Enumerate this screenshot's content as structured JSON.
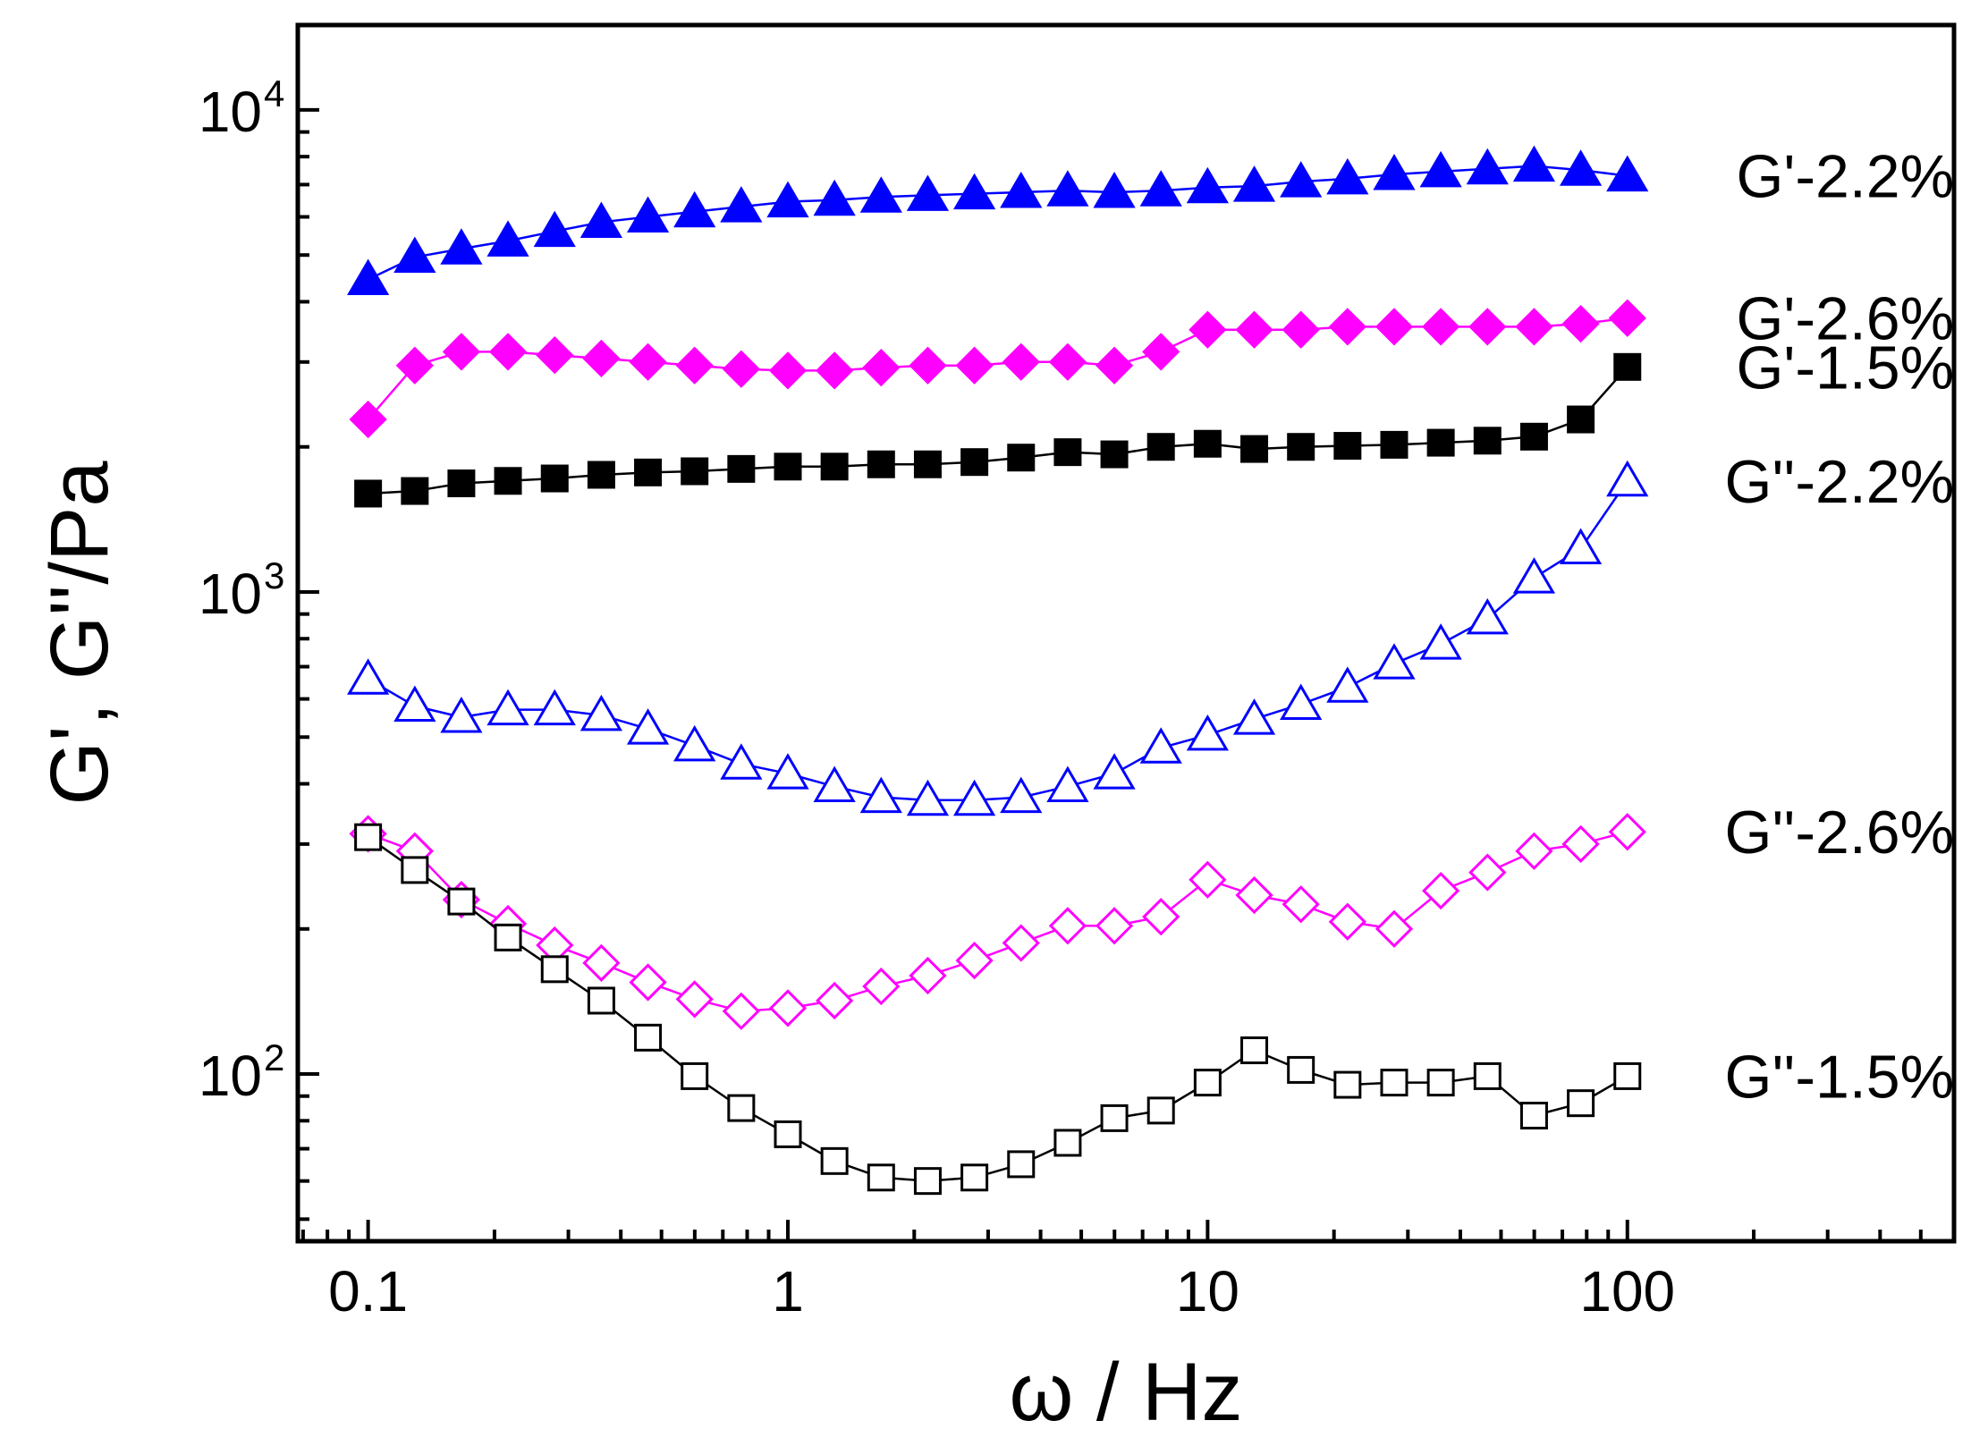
{
  "chart_data": {
    "type": "scatter",
    "xscale": "log",
    "yscale": "log",
    "xlim": [
      0.068,
      600
    ],
    "ylim": [
      45,
      15000
    ],
    "xlabel": "ω / Hz",
    "ylabel": "G', G''/Pa",
    "x_ticks": [
      {
        "value": 0.1,
        "label": "0.1"
      },
      {
        "value": 1,
        "label": "1"
      },
      {
        "value": 10,
        "label": "10"
      },
      {
        "value": 100,
        "label": "100"
      }
    ],
    "y_ticks": [
      {
        "value": 100,
        "base": "10",
        "exp": "2"
      },
      {
        "value": 1000,
        "base": "10",
        "exp": "3"
      },
      {
        "value": 10000,
        "base": "10",
        "exp": "4"
      }
    ],
    "x": [
      0.1,
      0.1292,
      0.1668,
      0.2154,
      0.2783,
      0.3594,
      0.4642,
      0.5995,
      0.7743,
      1.0,
      1.2915,
      1.6681,
      2.1544,
      2.7826,
      3.5938,
      4.6416,
      5.9948,
      7.7426,
      10.0,
      12.9155,
      16.681,
      21.5443,
      27.8256,
      35.9381,
      46.4159,
      59.9484,
      77.4264,
      100.0
    ],
    "series": [
      {
        "name": "G'-2.2%",
        "label": "G'-2.2%",
        "marker": "triangle",
        "filled": true,
        "color": "#0000ff",
        "values": [
          4450,
          4950,
          5150,
          5350,
          5600,
          5850,
          6000,
          6150,
          6300,
          6450,
          6500,
          6600,
          6650,
          6700,
          6750,
          6800,
          6750,
          6800,
          6900,
          6950,
          7100,
          7200,
          7350,
          7450,
          7550,
          7650,
          7500,
          7300
        ]
      },
      {
        "name": "G'-2.6%",
        "label": "G'-2.6%",
        "marker": "diamond",
        "filled": true,
        "color": "#ff00ff",
        "values": [
          2280,
          2950,
          3150,
          3150,
          3100,
          3050,
          3000,
          2950,
          2900,
          2880,
          2880,
          2920,
          2950,
          2950,
          3000,
          3000,
          2950,
          3150,
          3500,
          3500,
          3500,
          3550,
          3550,
          3550,
          3550,
          3550,
          3600,
          3700
        ]
      },
      {
        "name": "G'-1.5%",
        "label": "G'-1.5%",
        "marker": "square",
        "filled": true,
        "color": "#000000",
        "values": [
          1600,
          1620,
          1680,
          1700,
          1720,
          1750,
          1770,
          1780,
          1800,
          1820,
          1820,
          1840,
          1840,
          1860,
          1900,
          1950,
          1930,
          2000,
          2030,
          1980,
          2000,
          2010,
          2020,
          2040,
          2060,
          2100,
          2280,
          2930
        ]
      },
      {
        "name": "G''-2.2%",
        "label": "G''-2.2%",
        "marker": "triangle",
        "filled": false,
        "color": "#0000ff",
        "values": [
          660,
          580,
          550,
          570,
          570,
          555,
          520,
          480,
          440,
          420,
          395,
          375,
          370,
          370,
          375,
          395,
          420,
          475,
          505,
          545,
          585,
          635,
          710,
          780,
          880,
          1070,
          1230,
          1700
        ]
      },
      {
        "name": "G''-2.6%",
        "label": "G''-2.6%",
        "marker": "diamond",
        "filled": false,
        "color": "#ff00ff",
        "values": [
          315,
          290,
          230,
          205,
          185,
          170,
          155,
          143,
          135,
          137,
          142,
          152,
          160,
          172,
          187,
          203,
          203,
          212,
          253,
          235,
          225,
          207,
          200,
          240,
          262,
          290,
          300,
          318
        ]
      },
      {
        "name": "G''-1.5%",
        "label": "G''-1.5%",
        "marker": "square",
        "filled": false,
        "color": "#000000",
        "values": [
          310,
          265,
          228,
          192,
          165,
          142,
          119,
          99,
          85,
          75,
          66,
          61,
          60,
          61,
          65,
          72,
          81,
          84,
          96,
          112,
          102,
          95,
          96,
          96,
          99,
          82,
          87,
          99
        ]
      }
    ]
  }
}
